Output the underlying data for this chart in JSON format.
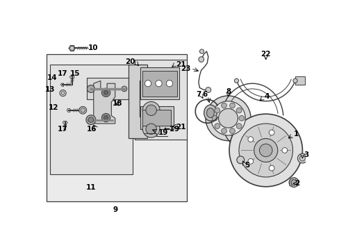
{
  "bg_color": "#ffffff",
  "fig_width": 4.89,
  "fig_height": 3.6,
  "dpi": 100,
  "line_color": "#3a3a3a",
  "box_fill": "#ebebeb",
  "label_fs": 7.5
}
